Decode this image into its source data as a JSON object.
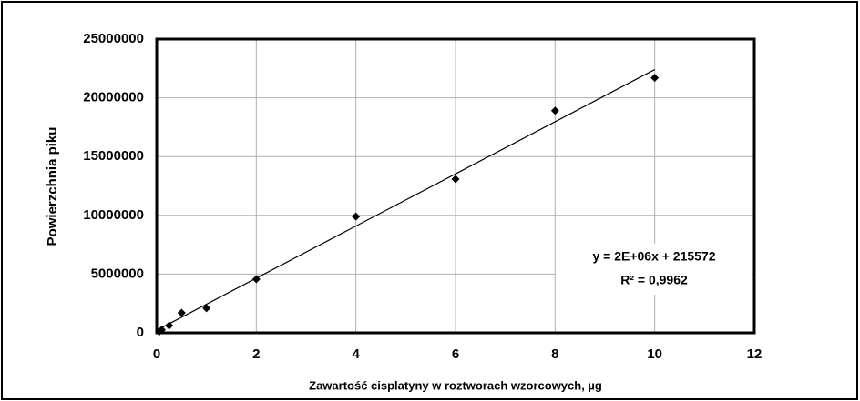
{
  "chart_data": {
    "type": "scatter",
    "x_label": "Zawartość cisplatyny w roztworach wzorcowych, µg",
    "y_label": "Powierzchnia piku",
    "x": [
      0.05,
      0.1,
      0.25,
      0.5,
      1,
      2,
      4,
      6,
      8,
      10
    ],
    "values": [
      100000,
      250000,
      620000,
      1700000,
      2100000,
      4570000,
      9900000,
      13080000,
      18900000,
      21700000
    ],
    "color": "#000000",
    "trendline": {
      "x": [
        0,
        10
      ],
      "values": [
        215572,
        22400000
      ]
    },
    "annotations": [
      "y = 2E+06x + 215572",
      "R² = 0,9962"
    ],
    "xlim": [
      0,
      12
    ],
    "xticks": [
      0,
      2,
      4,
      6,
      8,
      10,
      12
    ],
    "ylim": [
      0,
      25000000
    ],
    "yticks": [
      0,
      5000000,
      10000000,
      15000000,
      20000000,
      25000000
    ],
    "grid": true
  }
}
